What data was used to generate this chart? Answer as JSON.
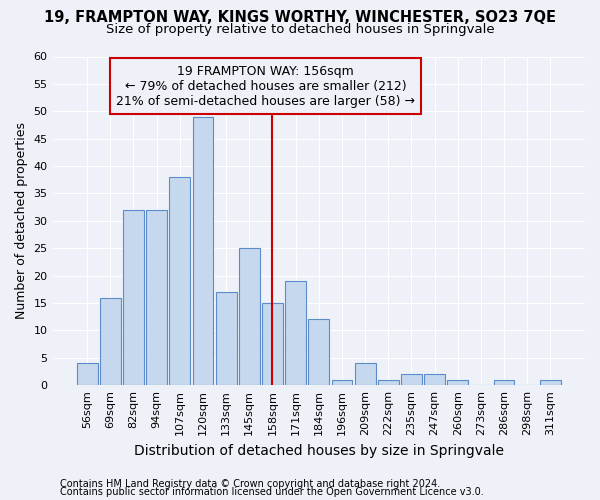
{
  "title": "19, FRAMPTON WAY, KINGS WORTHY, WINCHESTER, SO23 7QE",
  "subtitle": "Size of property relative to detached houses in Springvale",
  "xlabel": "Distribution of detached houses by size in Springvale",
  "ylabel": "Number of detached properties",
  "categories": [
    "56sqm",
    "69sqm",
    "82sqm",
    "94sqm",
    "107sqm",
    "120sqm",
    "133sqm",
    "145sqm",
    "158sqm",
    "171sqm",
    "184sqm",
    "196sqm",
    "209sqm",
    "222sqm",
    "235sqm",
    "247sqm",
    "260sqm",
    "273sqm",
    "286sqm",
    "298sqm",
    "311sqm"
  ],
  "values": [
    4,
    16,
    32,
    32,
    38,
    49,
    17,
    25,
    15,
    19,
    12,
    1,
    4,
    1,
    2,
    2,
    1,
    0,
    1,
    0,
    1
  ],
  "bar_color": "#c5d8ee",
  "bar_edge_color": "#5b8bc9",
  "vline_x_idx": 8,
  "vline_color": "#cc0000",
  "annotation_line1": "19 FRAMPTON WAY: 156sqm",
  "annotation_line2": "← 79% of detached houses are smaller (212)",
  "annotation_line3": "21% of semi-detached houses are larger (58) →",
  "annotation_box_color": "#cc0000",
  "ylim": [
    0,
    60
  ],
  "yticks": [
    0,
    5,
    10,
    15,
    20,
    25,
    30,
    35,
    40,
    45,
    50,
    55,
    60
  ],
  "footnote1": "Contains HM Land Registry data © Crown copyright and database right 2024.",
  "footnote2": "Contains public sector information licensed under the Open Government Licence v3.0.",
  "background_color": "#eef2f8",
  "grid_color": "#ffffff",
  "title_fontsize": 10.5,
  "subtitle_fontsize": 9.5,
  "xlabel_fontsize": 10,
  "ylabel_fontsize": 9,
  "tick_fontsize": 8,
  "annotation_fontsize": 9,
  "footnote_fontsize": 7
}
